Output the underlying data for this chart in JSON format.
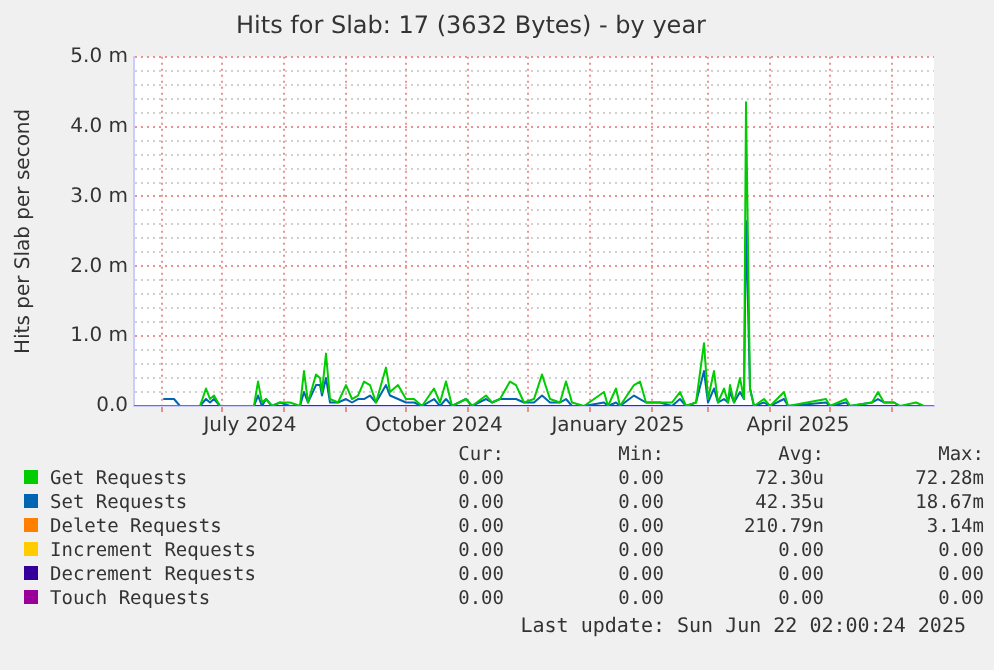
{
  "chart_data": {
    "type": "line",
    "title": "Hits for Slab: 17 (3632 Bytes) - by year",
    "ylabel": "Hits per Slab per second",
    "x": [
      "2024-05-18",
      "2024-05-31",
      "2024-06-02",
      "2024-06-07",
      "2024-06-10",
      "2024-06-20",
      "2024-06-23",
      "2024-06-25",
      "2024-06-27",
      "2024-06-30",
      "2024-07-17",
      "2024-07-19",
      "2024-07-21",
      "2024-07-23",
      "2024-07-26",
      "2024-07-30",
      "2024-08-04",
      "2024-08-09",
      "2024-08-11",
      "2024-08-13",
      "2024-08-17",
      "2024-08-19",
      "2024-08-20",
      "2024-08-22",
      "2024-08-24",
      "2024-08-28",
      "2024-09-01",
      "2024-09-04",
      "2024-09-07",
      "2024-09-10",
      "2024-09-13",
      "2024-09-16",
      "2024-09-21",
      "2024-09-23",
      "2024-09-27",
      "2024-10-01",
      "2024-10-05",
      "2024-10-09",
      "2024-10-15",
      "2024-10-18",
      "2024-10-21",
      "2024-10-24",
      "2024-10-31",
      "2024-11-03",
      "2024-11-10",
      "2024-11-13",
      "2024-11-17",
      "2024-11-22",
      "2024-11-25",
      "2024-11-29",
      "2024-12-04",
      "2024-12-08",
      "2024-12-12",
      "2024-12-17",
      "2024-12-20",
      "2024-12-23",
      "2024-12-29",
      "2025-01-08",
      "2025-01-10",
      "2025-01-14",
      "2025-01-16",
      "2025-01-23",
      "2025-01-26",
      "2025-01-29",
      "2025-02-05",
      "2025-02-11",
      "2025-02-15",
      "2025-02-18",
      "2025-02-23",
      "2025-02-27",
      "2025-03-01",
      "2025-03-04",
      "2025-03-06",
      "2025-03-09",
      "2025-03-11",
      "2025-03-12",
      "2025-03-14",
      "2025-03-17",
      "2025-03-19",
      "2025-03-20",
      "2025-03-22",
      "2025-03-24",
      "2025-03-29",
      "2025-04-01",
      "2025-04-08",
      "2025-04-10",
      "2025-04-29",
      "2025-05-01",
      "2025-05-09",
      "2025-05-11",
      "2025-05-22",
      "2025-05-25",
      "2025-05-28",
      "2025-06-02",
      "2025-06-05",
      "2025-06-13",
      "2025-06-17",
      "2025-06-22"
    ],
    "series": [
      {
        "name": "Get Requests",
        "color": "#00cc00",
        "values": [
          0,
          0,
          0,
          0,
          0,
          0,
          0.25,
          0.1,
          0.15,
          0,
          0,
          0.35,
          0.05,
          0.1,
          0,
          0.05,
          0.05,
          0,
          0.5,
          0.05,
          0.45,
          0.4,
          0.2,
          0.75,
          0.1,
          0.05,
          0.3,
          0.1,
          0.15,
          0.35,
          0.3,
          0.05,
          0.55,
          0.2,
          0.3,
          0.1,
          0.1,
          0,
          0.25,
          0.05,
          0.35,
          0,
          0.1,
          0,
          0.15,
          0.05,
          0.1,
          0.35,
          0.3,
          0.05,
          0.1,
          0.45,
          0.1,
          0.05,
          0.35,
          0.05,
          0,
          0.2,
          0,
          0.25,
          0,
          0.3,
          0.35,
          0.05,
          0.05,
          0.05,
          0.2,
          0,
          0.05,
          0.9,
          0.1,
          0.5,
          0.05,
          0.25,
          0.05,
          0.3,
          0.05,
          0.4,
          0.1,
          4.35,
          0.25,
          0,
          0.1,
          0,
          0.2,
          0,
          0.1,
          0,
          0.1,
          0,
          0.05,
          0.2,
          0.05,
          0.05,
          0,
          0.05,
          0,
          0
        ]
      },
      {
        "name": "Set Requests",
        "color": "#0066b3",
        "values": [
          null,
          null,
          0.1,
          0.1,
          0,
          0,
          0.1,
          0.05,
          0.1,
          0,
          0,
          0.15,
          0,
          0.1,
          0,
          0.05,
          0,
          0,
          0.2,
          0.05,
          0.3,
          0.3,
          0.15,
          0.4,
          0.05,
          0.05,
          0.1,
          0.05,
          0.1,
          0.1,
          0.15,
          0.05,
          0.3,
          0.15,
          0.1,
          0.05,
          0.05,
          0,
          0.1,
          0,
          0.1,
          0,
          0.1,
          0,
          0.1,
          0.05,
          0.1,
          0.1,
          0.1,
          0.05,
          0.05,
          0.15,
          0.05,
          0.05,
          0.1,
          0,
          0,
          0.05,
          0,
          0.05,
          0,
          0.15,
          0.1,
          0.05,
          0.05,
          0,
          0.1,
          0,
          0.05,
          0.5,
          0.05,
          0.25,
          0.05,
          0.1,
          0.05,
          0.2,
          0.05,
          0.2,
          0.1,
          2.65,
          0.25,
          0,
          0.05,
          0,
          0.1,
          0,
          0.05,
          0,
          0.05,
          0,
          0.05,
          0.1,
          0.05,
          0.05,
          0,
          0,
          0,
          0
        ]
      },
      {
        "name": "Delete Requests",
        "color": "#ff8000",
        "values": [
          null,
          null,
          null,
          null,
          null,
          null,
          null,
          null,
          null,
          null,
          null,
          null,
          null,
          null,
          null,
          null,
          null,
          null,
          null,
          null,
          null,
          null,
          null,
          null,
          null,
          null,
          null,
          null,
          null,
          null,
          null,
          null,
          null,
          null,
          null,
          null,
          null,
          null,
          null,
          null,
          null,
          null,
          null,
          null,
          null,
          null,
          null,
          null,
          null,
          null,
          null,
          null,
          null,
          null,
          null,
          null,
          null,
          null,
          null,
          null,
          null,
          null,
          null,
          null,
          null,
          null,
          null,
          null,
          null,
          null,
          null,
          null,
          null,
          null,
          null,
          null,
          null,
          null,
          null,
          null,
          null,
          null,
          null,
          null,
          null,
          null,
          null,
          null,
          null,
          null,
          null,
          null,
          null,
          null,
          null,
          null,
          null,
          null
        ]
      },
      {
        "name": "Increment Requests",
        "color": "#ffcc00",
        "values": [
          null,
          null,
          null,
          null,
          null,
          null,
          null,
          null,
          null,
          null,
          null,
          null,
          null,
          null,
          null,
          null,
          null,
          null,
          null,
          null,
          null,
          null,
          null,
          null,
          null,
          null,
          null,
          null,
          null,
          null,
          null,
          null,
          null,
          null,
          null,
          null,
          null,
          null,
          null,
          null,
          null,
          null,
          null,
          null,
          null,
          null,
          null,
          null,
          null,
          null,
          null,
          null,
          null,
          null,
          null,
          null,
          null,
          null,
          null,
          null,
          null,
          null,
          null,
          null,
          null,
          null,
          null,
          null,
          null,
          null,
          null,
          null,
          null,
          null,
          null,
          null,
          null,
          null,
          null,
          null,
          null,
          null,
          null,
          null,
          null,
          null,
          null,
          null,
          null,
          null,
          null,
          null,
          null,
          null,
          null,
          null,
          null,
          null
        ]
      },
      {
        "name": "Decrement Requests",
        "color": "#330099",
        "values": [
          null,
          null,
          null,
          null,
          null,
          null,
          null,
          null,
          null,
          null,
          null,
          null,
          null,
          null,
          null,
          null,
          null,
          null,
          null,
          null,
          null,
          null,
          null,
          null,
          null,
          null,
          null,
          null,
          null,
          null,
          null,
          null,
          null,
          null,
          null,
          null,
          null,
          null,
          null,
          null,
          null,
          null,
          null,
          null,
          null,
          null,
          null,
          null,
          null,
          null,
          null,
          null,
          null,
          null,
          null,
          null,
          null,
          null,
          null,
          null,
          null,
          null,
          null,
          null,
          null,
          null,
          null,
          null,
          null,
          null,
          null,
          null,
          null,
          null,
          null,
          null,
          null,
          null,
          null,
          null,
          null,
          null,
          null,
          null,
          null,
          null,
          null,
          null,
          null,
          null,
          null,
          null,
          null,
          null,
          null,
          null,
          null,
          null
        ]
      },
      {
        "name": "Touch Requests",
        "color": "#990099",
        "x": [
          "2024-05-18",
          "2025-06-22"
        ],
        "values": [
          0,
          0
        ]
      }
    ],
    "xlim": [
      "2024-05-18",
      "2025-06-22"
    ],
    "xticks": [
      {
        "value": "2024-06-01",
        "label": null
      },
      {
        "value": "2024-07-01",
        "label": null
      },
      {
        "value": "2024-07-15",
        "label": "July 2024"
      },
      {
        "value": "2024-08-01",
        "label": null
      },
      {
        "value": "2024-09-01",
        "label": null
      },
      {
        "value": "2024-10-01",
        "label": null
      },
      {
        "value": "2024-10-15",
        "label": "October 2024"
      },
      {
        "value": "2024-11-01",
        "label": null
      },
      {
        "value": "2024-12-01",
        "label": null
      },
      {
        "value": "2025-01-01",
        "label": null
      },
      {
        "value": "2025-01-15",
        "label": "January 2025"
      },
      {
        "value": "2025-02-01",
        "label": null
      },
      {
        "value": "2025-03-01",
        "label": null
      },
      {
        "value": "2025-04-01",
        "label": null
      },
      {
        "value": "2025-04-15",
        "label": "April 2025"
      },
      {
        "value": "2025-05-01",
        "label": null
      },
      {
        "value": "2025-06-01",
        "label": null
      }
    ],
    "ylim": [
      0,
      5
    ],
    "yticks": [
      {
        "value": 0,
        "label": "0.0"
      },
      {
        "value": 0.2,
        "label": null
      },
      {
        "value": 0.4,
        "label": null
      },
      {
        "value": 0.6,
        "label": null
      },
      {
        "value": 0.8,
        "label": null
      },
      {
        "value": 1,
        "label": "1.0 m"
      },
      {
        "value": 1.2,
        "label": null
      },
      {
        "value": 1.4,
        "label": null
      },
      {
        "value": 1.6,
        "label": null
      },
      {
        "value": 1.8,
        "label": null
      },
      {
        "value": 2,
        "label": "2.0 m"
      },
      {
        "value": 2.2,
        "label": null
      },
      {
        "value": 2.4,
        "label": null
      },
      {
        "value": 2.6,
        "label": null
      },
      {
        "value": 2.8,
        "label": null
      },
      {
        "value": 3,
        "label": "3.0 m"
      },
      {
        "value": 3.2,
        "label": null
      },
      {
        "value": 3.4,
        "label": null
      },
      {
        "value": 3.6,
        "label": null
      },
      {
        "value": 3.8,
        "label": null
      },
      {
        "value": 4,
        "label": "4.0 m"
      },
      {
        "value": 4.2,
        "label": null
      },
      {
        "value": 4.4,
        "label": null
      },
      {
        "value": 4.6,
        "label": null
      },
      {
        "value": 4.8,
        "label": null
      },
      {
        "value": 5,
        "label": "5.0 m"
      }
    ],
    "grid": true,
    "legend": "bottom",
    "marker": "none",
    "line_style": "solid",
    "annotations": [
      "Cur:",
      "Min:",
      "Avg:",
      "Max:",
      "0.00",
      "0.00",
      "72.30u",
      "72.28m",
      "0.00",
      "0.00",
      "42.35u",
      "18.67m",
      "0.00",
      "0.00",
      "210.79n",
      "3.14m",
      "0.00",
      "0.00",
      "0.00",
      "0.00",
      "0.00",
      "0.00",
      "0.00",
      "0.00",
      "0.00",
      "0.00",
      "0.00",
      "0.00",
      "Last update: Sun Jun 22 02:00:24 2025"
    ]
  }
}
